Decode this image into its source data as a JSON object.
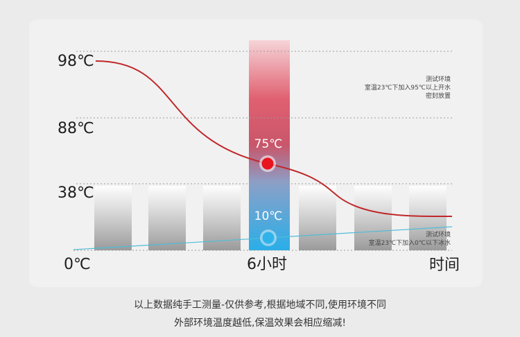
{
  "chart_data": {
    "type": "line",
    "title": "",
    "y_tick_labels": [
      "98℃",
      "88℃",
      "38℃"
    ],
    "x_tick_labels": [
      "0℃",
      "6小时",
      "时间"
    ],
    "series": [
      {
        "name": "",
        "color": "#c0282a",
        "points": [
          {
            "x": "0小时",
            "y": 98
          },
          {
            "x": "6小时",
            "y": 75
          }
        ]
      },
      {
        "name": "",
        "color": "#4fbcd8",
        "points": [
          {
            "x": "0小时",
            "y": 0
          },
          {
            "x": "6小时",
            "y": 10
          }
        ]
      }
    ],
    "highlight": {
      "x_label": "6小时",
      "hot_value_label": "75℃",
      "cold_value_label": "10℃",
      "hot_color": "#e8141e",
      "cold_color": "#2fb3ea"
    },
    "annotations": {
      "hot": [
        "测试环境",
        "室温23℃下加入95℃以上开水",
        "密封放置"
      ],
      "cold": [
        "测试环境",
        "室温23℃下加入0℃以下冰水"
      ]
    },
    "grid": "dashed horizontal"
  },
  "caption": {
    "line1": "以上数据纯手工测量-仅供参考,根据地域不同,使用环境不同",
    "line2": "外部环境温度越低,保温效果会相应缩减!"
  }
}
